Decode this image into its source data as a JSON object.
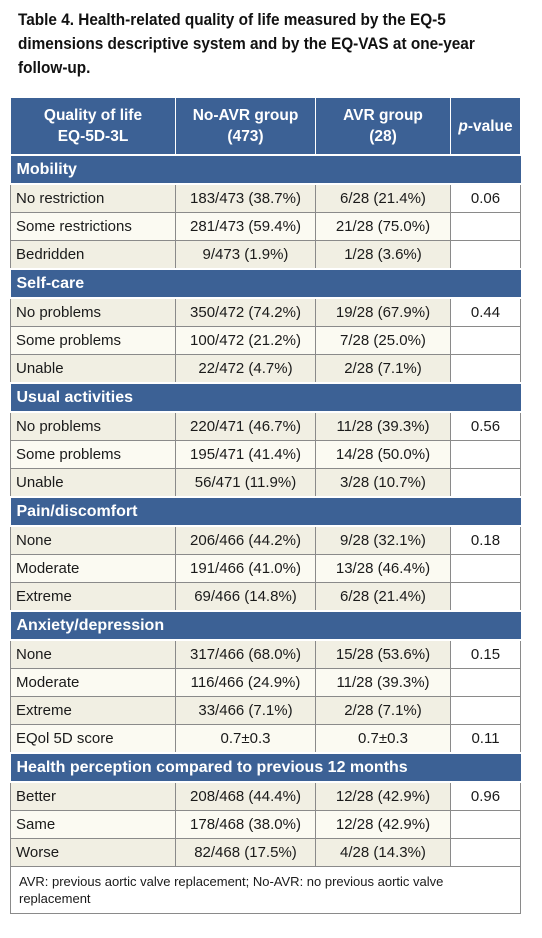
{
  "caption": "Table 4. Health-related quality of life measured by the EQ-5 dimensions descriptive system and by the EQ-VAS at one-year follow-up.",
  "header": {
    "col1_line1": "Quality of life",
    "col1_line2": "EQ-5D-3L",
    "col2_line1": "No-AVR group",
    "col2_line2": "(473)",
    "col3_line1": "AVR group",
    "col3_line2": "(28)",
    "col4_italic": "p",
    "col4_rest": "-value"
  },
  "sections": [
    {
      "title": "Mobility",
      "rows": [
        {
          "label": "No restriction",
          "noavr": "183/473 (38.7%)",
          "avr": "6/28 (21.4%)",
          "p": "0.06"
        },
        {
          "label": "Some restrictions",
          "noavr": "281/473 (59.4%)",
          "avr": "21/28 (75.0%)",
          "p": ""
        },
        {
          "label": "Bedridden",
          "noavr": "9/473 (1.9%)",
          "avr": "1/28 (3.6%)",
          "p": ""
        }
      ]
    },
    {
      "title": "Self-care",
      "rows": [
        {
          "label": "No problems",
          "noavr": "350/472 (74.2%)",
          "avr": "19/28 (67.9%)",
          "p": "0.44"
        },
        {
          "label": "Some problems",
          "noavr": "100/472 (21.2%)",
          "avr": "7/28 (25.0%)",
          "p": ""
        },
        {
          "label": "Unable",
          "noavr": "22/472 (4.7%)",
          "avr": "2/28 (7.1%)",
          "p": ""
        }
      ]
    },
    {
      "title": "Usual activities",
      "rows": [
        {
          "label": "No problems",
          "noavr": "220/471 (46.7%)",
          "avr": "11/28 (39.3%)",
          "p": "0.56"
        },
        {
          "label": "Some problems",
          "noavr": "195/471 (41.4%)",
          "avr": "14/28 (50.0%)",
          "p": ""
        },
        {
          "label": "Unable",
          "noavr": "56/471 (11.9%)",
          "avr": "3/28 (10.7%)",
          "p": ""
        }
      ]
    },
    {
      "title": "Pain/discomfort",
      "rows": [
        {
          "label": "None",
          "noavr": "206/466 (44.2%)",
          "avr": "9/28 (32.1%)",
          "p": "0.18"
        },
        {
          "label": "Moderate",
          "noavr": "191/466 (41.0%)",
          "avr": "13/28 (46.4%)",
          "p": ""
        },
        {
          "label": "Extreme",
          "noavr": "69/466 (14.8%)",
          "avr": "6/28 (21.4%)",
          "p": ""
        }
      ]
    },
    {
      "title": "Anxiety/depression",
      "rows": [
        {
          "label": "None",
          "noavr": "317/466 (68.0%)",
          "avr": "15/28 (53.6%)",
          "p": "0.15"
        },
        {
          "label": "Moderate",
          "noavr": "116/466 (24.9%)",
          "avr": "11/28 (39.3%)",
          "p": ""
        },
        {
          "label": "Extreme",
          "noavr": "33/466 (7.1%)",
          "avr": "2/28 (7.1%)",
          "p": ""
        },
        {
          "label": "EQol 5D score",
          "noavr": "0.7±0.3",
          "avr": "0.7±0.3",
          "p": "0.11"
        }
      ]
    },
    {
      "title": "Health perception compared to previous 12 months",
      "rows": [
        {
          "label": "Better",
          "noavr": "208/468 (44.4%)",
          "avr": "12/28 (42.9%)",
          "p": "0.96"
        },
        {
          "label": "Same",
          "noavr": "178/468 (38.0%)",
          "avr": "12/28 (42.9%)",
          "p": ""
        },
        {
          "label": "Worse",
          "noavr": "82/468 (17.5%)",
          "avr": "4/28 (14.3%)",
          "p": ""
        }
      ]
    }
  ],
  "footnote": "AVR: previous aortic valve replacement; No-AVR: no previous aortic valve replacement",
  "colors": {
    "header_bg": "#3c6195",
    "row_odd": "#f1efe3",
    "row_even": "#fbfaf2"
  }
}
